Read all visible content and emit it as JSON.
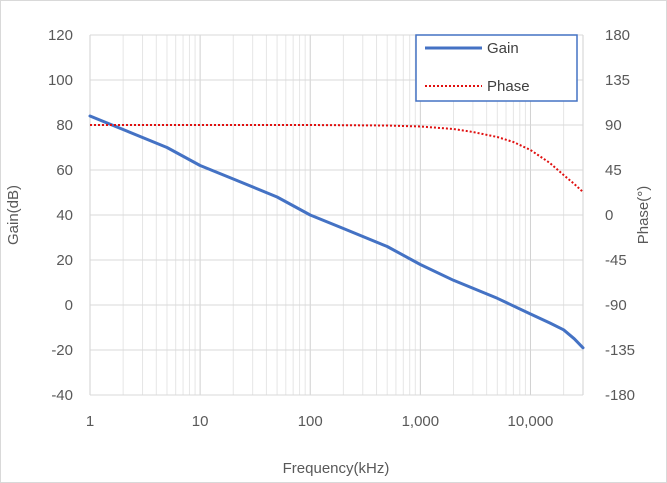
{
  "chart_data": {
    "type": "line",
    "xlabel": "Frequency(kHz)",
    "ylabel": "Gain(dB)",
    "y2label": "Phase(°)",
    "xscale": "log",
    "xlim": [
      1,
      30000
    ],
    "ylim": [
      -40,
      120
    ],
    "y2lim": [
      -180,
      180
    ],
    "x_ticks": [
      1,
      10,
      100,
      1000,
      10000
    ],
    "x_tick_labels": [
      "1",
      "10",
      "100",
      "1,000",
      "10,000"
    ],
    "y_ticks": [
      -40,
      -20,
      0,
      20,
      40,
      60,
      80,
      100,
      120
    ],
    "y_tick_labels": [
      "-40",
      "-20",
      "0",
      "20",
      "40",
      "60",
      "80",
      "100",
      "120"
    ],
    "y2_ticks": [
      -180,
      -135,
      -90,
      -45,
      0,
      45,
      90,
      135,
      180
    ],
    "y2_tick_labels": [
      "-180",
      "-135",
      "-90",
      "-45",
      "0",
      "45",
      "90",
      "135",
      "180"
    ],
    "grid": true,
    "legend_position": "top-right",
    "series": [
      {
        "name": "Gain",
        "axis": "left",
        "color": "#4472c4",
        "style": "solid",
        "x": [
          1,
          2,
          5,
          10,
          20,
          50,
          100,
          200,
          500,
          1000,
          2000,
          5000,
          10000,
          15000,
          20000,
          25000,
          30000
        ],
        "y": [
          84,
          78,
          70,
          62,
          56,
          48,
          40,
          34,
          26,
          18,
          11,
          3,
          -4,
          -8,
          -11,
          -15,
          -19
        ]
      },
      {
        "name": "Phase",
        "axis": "right",
        "color": "#e01010",
        "style": "dotted",
        "x": [
          1,
          10,
          100,
          500,
          1000,
          2000,
          3000,
          5000,
          7000,
          10000,
          15000,
          20000,
          25000,
          30000
        ],
        "y": [
          90,
          90,
          90,
          89.5,
          88.5,
          86,
          83,
          78,
          73,
          65,
          52,
          40,
          31,
          23
        ]
      }
    ]
  }
}
